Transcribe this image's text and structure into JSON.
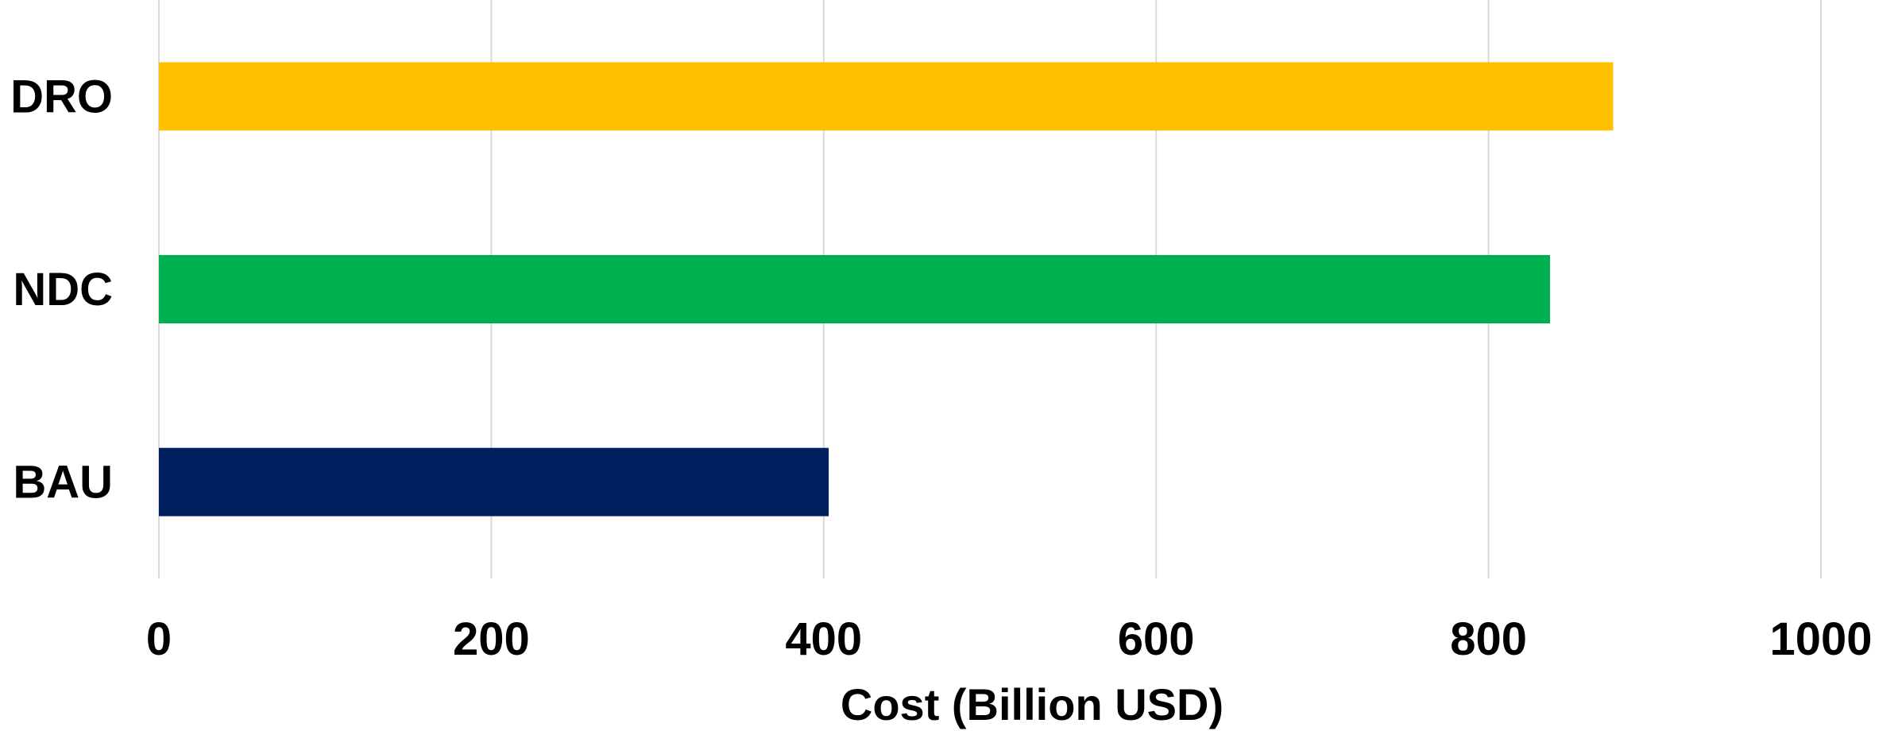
{
  "chart_data": {
    "type": "bar",
    "orientation": "horizontal",
    "categories": [
      "DRO",
      "NDC",
      "BAU"
    ],
    "values": [
      875,
      837,
      403
    ],
    "colors": [
      "#FFC000",
      "#00B050",
      "#002060"
    ],
    "title": "",
    "xlabel": "Cost (Billion USD)",
    "ylabel": "",
    "xlim": [
      0,
      1000
    ],
    "xticks": [
      "0",
      "200",
      "400",
      "600",
      "800",
      "1000"
    ],
    "grid": "vertical",
    "legend": "none"
  }
}
